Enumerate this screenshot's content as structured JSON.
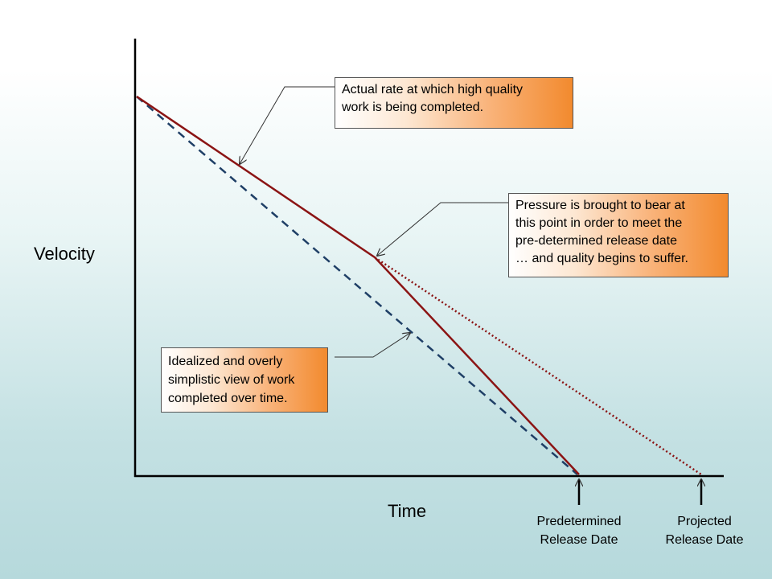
{
  "axes": {
    "y_label": "Velocity",
    "x_label": "Time"
  },
  "callouts": {
    "actual": [
      "Actual rate at which high quality",
      "work is being completed."
    ],
    "pressure": [
      "Pressure is brought to bear at",
      "this point in order to meet the",
      "pre-determined release date",
      "… and quality begins to suffer."
    ],
    "idealized": [
      "Idealized and overly",
      "simplistic view of work",
      "completed over time."
    ]
  },
  "markers": {
    "predetermined": [
      "Predetermined",
      "Release Date"
    ],
    "projected": [
      "Projected",
      "Release Date"
    ]
  },
  "colors": {
    "actual_line": "#8b1414",
    "ideal_line": "#1f3f66",
    "axis": "#000000"
  }
}
